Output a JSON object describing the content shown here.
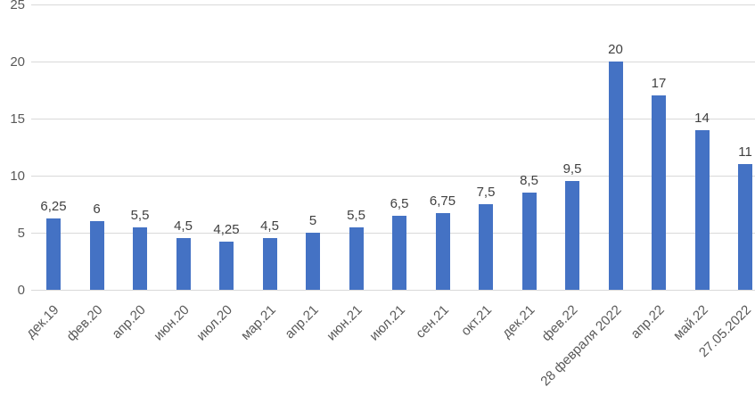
{
  "chart_data": {
    "type": "bar",
    "title": "",
    "xlabel": "",
    "ylabel": "",
    "categories": [
      "дек.19",
      "фев.20",
      "апр.20",
      "июн.20",
      "июл.20",
      "мар.21",
      "апр.21",
      "июн.21",
      "июл.21",
      "сен.21",
      "окт.21",
      "дек.21",
      "фев.22",
      "28 февраля 2022",
      "апр.22",
      "май.22",
      "27.05.2022"
    ],
    "values": [
      6.25,
      6,
      5.5,
      4.5,
      4.25,
      4.5,
      5,
      5.5,
      6.5,
      6.75,
      7.5,
      8.5,
      9.5,
      20,
      17,
      14,
      11
    ],
    "data_labels": [
      "6,25",
      "6",
      "5,5",
      "4,5",
      "4,25",
      "4,5",
      "5",
      "5,5",
      "6,5",
      "6,75",
      "7,5",
      "8,5",
      "9,5",
      "20",
      "17",
      "14",
      "11"
    ],
    "ylim": [
      0,
      25
    ],
    "yticks": [
      0,
      5,
      10,
      15,
      20,
      25
    ],
    "grid": true,
    "legend": "none",
    "x_labels_rotation_deg": 45,
    "bar_color": "#4472C4",
    "gridline_color": "#D9D9D9",
    "axis_text_color": "#595959",
    "label_text_color": "#404040",
    "background_color": "#FFFFFF"
  }
}
